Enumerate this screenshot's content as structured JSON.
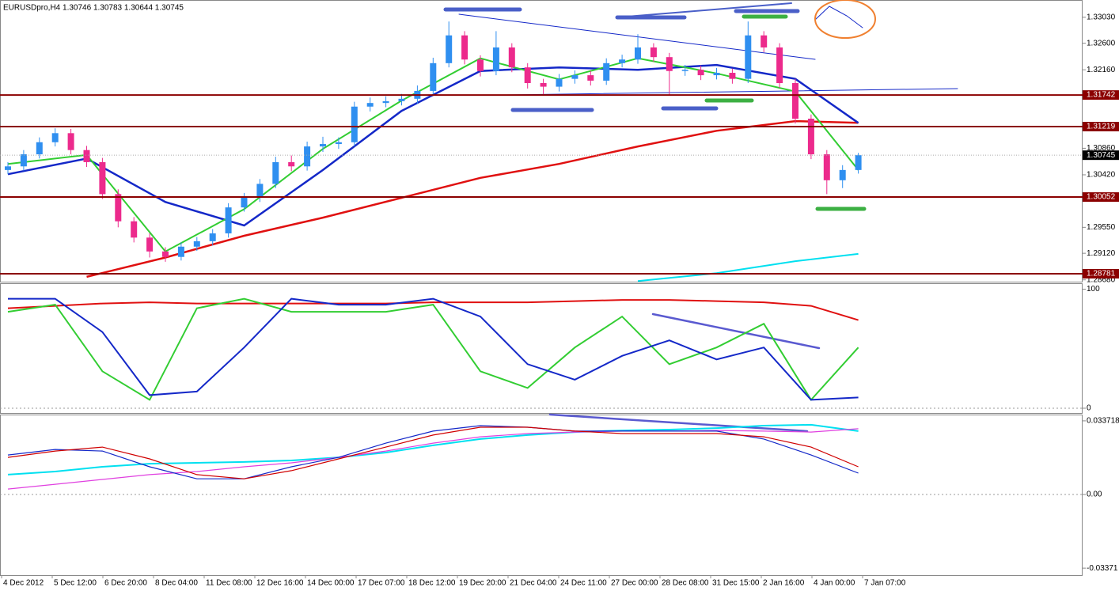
{
  "header": "EURUSDpro,H4  1.30746 1.30783 1.30644 1.30745",
  "time_labels": [
    "4 Dec 2012",
    "5 Dec 12:00",
    "6 Dec 20:00",
    "8 Dec 04:00",
    "11 Dec 08:00",
    "12 Dec 16:00",
    "14 Dec 00:00",
    "17 Dec 07:00",
    "18 Dec 12:00",
    "19 Dec 20:00",
    "21 Dec 04:00",
    "24 Dec 11:00",
    "27 Dec 00:00",
    "28 Dec 08:00",
    "31 Dec 15:00",
    "2 Jan 16:00",
    "4 Jan 00:00",
    "7 Jan 07:00"
  ],
  "chart_data": [
    {
      "type": "candlestick",
      "up_color": "#2f8ff0",
      "down_color": "#ec2a8c",
      "open": [
        1.305,
        1.3056,
        1.3076,
        1.3096,
        1.3111,
        1.3083,
        1.3063,
        1.301,
        1.2965,
        1.2938,
        1.2915,
        1.2906,
        1.2923,
        1.2932,
        1.2945,
        1.2988,
        1.3004,
        1.3027,
        1.3063,
        1.3056,
        1.3089,
        1.3093,
        1.3096,
        1.3155,
        1.3161,
        1.3164,
        1.3168,
        1.3181,
        1.3227,
        1.3273,
        1.3233,
        1.3214,
        1.3253,
        1.322,
        1.3194,
        1.3188,
        1.3201,
        1.3207,
        1.3198,
        1.3227,
        1.3233,
        1.3253,
        1.3237,
        1.3214,
        1.3216,
        1.3207,
        1.3211,
        1.3201,
        1.3273,
        1.3253,
        1.3194,
        1.3135,
        1.3076,
        1.3033,
        1.305
      ],
      "high": [
        1.3063,
        1.3083,
        1.3104,
        1.3119,
        1.3118,
        1.309,
        1.307,
        1.3018,
        1.2972,
        1.2945,
        1.2922,
        1.293,
        1.2939,
        1.2952,
        1.2995,
        1.3012,
        1.3035,
        1.3072,
        1.3074,
        1.3097,
        1.3105,
        1.3104,
        1.3163,
        1.317,
        1.3172,
        1.3176,
        1.319,
        1.3236,
        1.3296,
        1.328,
        1.324,
        1.328,
        1.326,
        1.3227,
        1.3201,
        1.3209,
        1.3215,
        1.3214,
        1.3235,
        1.3241,
        1.3275,
        1.326,
        1.3244,
        1.3224,
        1.3223,
        1.3219,
        1.3218,
        1.3296,
        1.328,
        1.326,
        1.3201,
        1.3142,
        1.3083,
        1.3058,
        1.30783
      ],
      "low": [
        1.3043,
        1.3049,
        1.3069,
        1.3089,
        1.3076,
        1.3055,
        1.3002,
        1.2955,
        1.293,
        1.2905,
        1.2898,
        1.29,
        1.2916,
        1.2925,
        1.2938,
        1.2981,
        1.2997,
        1.302,
        1.3048,
        1.3049,
        1.308,
        1.3085,
        1.3089,
        1.3147,
        1.3154,
        1.3157,
        1.316,
        1.3174,
        1.322,
        1.3225,
        1.3205,
        1.3207,
        1.3212,
        1.3185,
        1.3175,
        1.318,
        1.3193,
        1.319,
        1.3191,
        1.322,
        1.3226,
        1.3229,
        1.3175,
        1.3206,
        1.3199,
        1.32,
        1.3193,
        1.3194,
        1.3245,
        1.3186,
        1.3127,
        1.3068,
        1.301,
        1.302,
        1.3044
      ],
      "close": [
        1.3056,
        1.3076,
        1.3096,
        1.3111,
        1.3083,
        1.3063,
        1.301,
        1.2965,
        1.2938,
        1.2915,
        1.2906,
        1.2923,
        1.2932,
        1.2945,
        1.2988,
        1.3004,
        1.3027,
        1.3063,
        1.3056,
        1.3089,
        1.3093,
        1.3096,
        1.3155,
        1.3161,
        1.3164,
        1.3168,
        1.3181,
        1.3227,
        1.3273,
        1.3233,
        1.3214,
        1.3253,
        1.322,
        1.3194,
        1.3188,
        1.3201,
        1.3207,
        1.3198,
        1.3227,
        1.3233,
        1.3253,
        1.3237,
        1.3214,
        1.3216,
        1.3207,
        1.3211,
        1.3201,
        1.3273,
        1.3253,
        1.3194,
        1.3135,
        1.3076,
        1.3033,
        1.305,
        1.30745
      ],
      "ylim": [
        1.2865,
        1.3329
      ],
      "yticks": [
        {
          "value": 1.3303,
          "label": "1.33030"
        },
        {
          "value": 1.326,
          "label": "1.32600"
        },
        {
          "value": 1.3216,
          "label": "1.32160"
        },
        {
          "value": 1.3086,
          "label": "1.30860"
        },
        {
          "value": 1.3042,
          "label": "1.30420"
        },
        {
          "value": 1.2955,
          "label": "1.29550"
        },
        {
          "value": 1.2912,
          "label": "1.29120"
        },
        {
          "value": 1.2868,
          "label": "1.28680"
        }
      ],
      "levels": [
        {
          "value": 1.31742,
          "label": "1.31742"
        },
        {
          "value": 1.31219,
          "label": "1.31219"
        },
        {
          "value": 1.30052,
          "label": "1.30052"
        },
        {
          "value": 1.28781,
          "label": "1.28781"
        }
      ],
      "level_color": "#8b0000",
      "current_price": {
        "value": 1.30745,
        "label": "1.30745"
      },
      "line_x": [
        0,
        5,
        10,
        15,
        20,
        25,
        30,
        35,
        40,
        45,
        50,
        54
      ],
      "series": [
        {
          "color": "#e01010",
          "width": 2.5,
          "values": [
            null,
            1.2873,
            1.2905,
            1.2941,
            1.2971,
            1.3004,
            1.3037,
            1.306,
            1.3089,
            1.3115,
            1.3131,
            1.3128
          ]
        },
        {
          "color": "#1428c8",
          "width": 2.5,
          "values": [
            1.3043,
            1.3069,
            1.2997,
            1.2958,
            1.305,
            1.3148,
            1.3214,
            1.322,
            1.3216,
            1.3224,
            1.3201,
            1.3128
          ]
        },
        {
          "color": "#32cd32",
          "width": 2,
          "values": [
            1.306,
            1.3075,
            1.2915,
            1.2985,
            1.3085,
            1.3165,
            1.3235,
            1.32,
            1.3235,
            1.321,
            1.318,
            1.305
          ]
        },
        {
          "color": "#00e0f0",
          "width": 2,
          "values": [
            null,
            null,
            null,
            null,
            null,
            null,
            null,
            null,
            1.2866,
            1.2879,
            1.2899,
            1.2911
          ]
        }
      ]
    },
    {
      "type": "line",
      "ylim": [
        -4,
        105
      ],
      "yticks": [
        100,
        0
      ],
      "x": [
        0,
        3,
        6,
        9,
        12,
        15,
        18,
        21,
        24,
        27,
        30,
        33,
        36,
        39,
        42,
        45,
        48,
        51,
        54
      ],
      "series": [
        {
          "color": "#e01010",
          "width": 2,
          "values": [
            84,
            86,
            88,
            89,
            88,
            88,
            88,
            88,
            88,
            89,
            89,
            89,
            90,
            91,
            91,
            90,
            89,
            86,
            74
          ]
        },
        {
          "color": "#32cd32",
          "width": 2,
          "values": [
            81,
            87,
            31,
            7,
            84,
            92,
            81,
            81,
            81,
            87,
            31,
            17,
            51,
            77,
            37,
            51,
            71,
            7,
            51
          ]
        },
        {
          "color": "#1428c8",
          "width": 2,
          "values": [
            92,
            92,
            64,
            11,
            14,
            51,
            92,
            87,
            87,
            92,
            77,
            37,
            24,
            44,
            57,
            41,
            51,
            7,
            9
          ]
        }
      ]
    },
    {
      "type": "line",
      "ylim": [
        -0.0362,
        0.0355
      ],
      "yticks": [
        0.033718,
        {
          "value": 0,
          "label": "0.00"
        },
        -0.03371
      ],
      "x": [
        0,
        3,
        6,
        9,
        12,
        15,
        18,
        21,
        24,
        27,
        30,
        33,
        36,
        39,
        42,
        45,
        48,
        51,
        54
      ],
      "series": [
        {
          "color": "#00e0f0",
          "width": 2,
          "values": [
            0.0091,
            0.0105,
            0.0127,
            0.0141,
            0.0145,
            0.0149,
            0.0156,
            0.017,
            0.0192,
            0.0225,
            0.0254,
            0.0272,
            0.0286,
            0.0293,
            0.0297,
            0.0304,
            0.0315,
            0.0319,
            0.029
          ]
        },
        {
          "color": "#e040e0",
          "width": 1.2,
          "values": [
            0.0025,
            0.0047,
            0.0069,
            0.0091,
            0.0105,
            0.0127,
            0.0145,
            0.017,
            0.0199,
            0.0235,
            0.0264,
            0.0279,
            0.0286,
            0.029,
            0.029,
            0.0293,
            0.029,
            0.0286,
            0.0301
          ]
        },
        {
          "color": "#1428c8",
          "width": 1.2,
          "values": [
            0.0181,
            0.0206,
            0.0199,
            0.0127,
            0.0072,
            0.0072,
            0.0127,
            0.017,
            0.0235,
            0.029,
            0.0315,
            0.0308,
            0.029,
            0.029,
            0.029,
            0.029,
            0.0254,
            0.0181,
            0.0098
          ]
        },
        {
          "color": "#d00000",
          "width": 1.2,
          "values": [
            0.017,
            0.0199,
            0.0217,
            0.0163,
            0.0091,
            0.0072,
            0.0109,
            0.0163,
            0.0217,
            0.0272,
            0.0308,
            0.0308,
            0.029,
            0.0279,
            0.0279,
            0.0279,
            0.0264,
            0.0217,
            0.0127
          ]
        }
      ]
    }
  ]
}
